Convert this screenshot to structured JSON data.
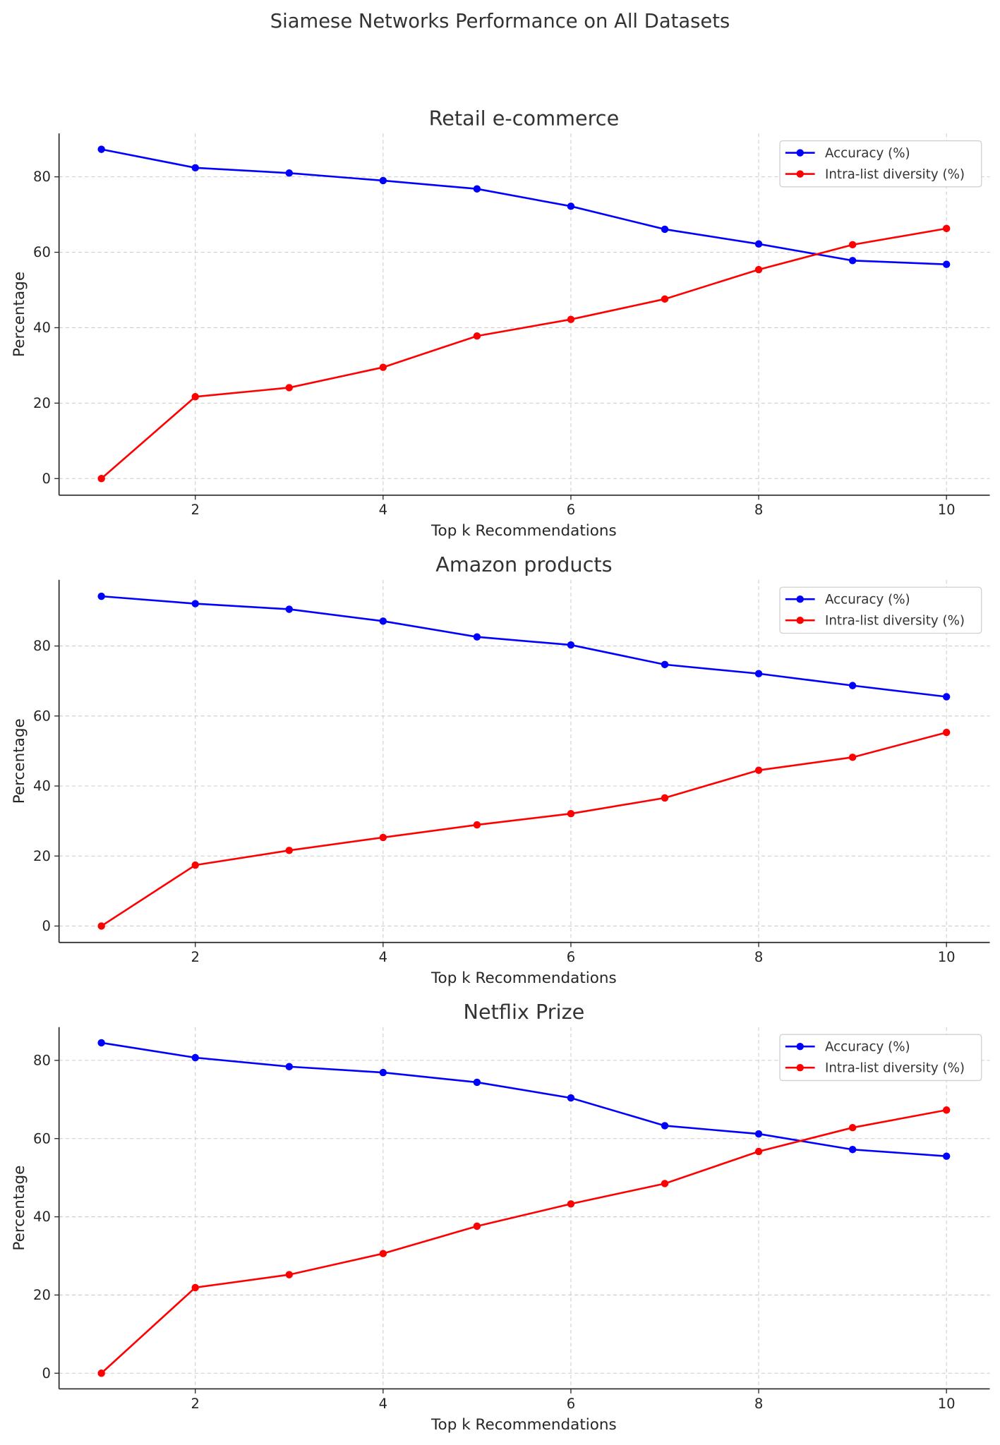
{
  "chart_data": {
    "title": "Siamese Networks Performance on All Datasets",
    "type": "line",
    "colors": {
      "accuracy": "#0000ff",
      "diversity": "#ff0000"
    },
    "grid": true,
    "legend_placement": "top-right",
    "subplots": [
      {
        "title": "Retail e-commerce",
        "xlabel": "Top k Recommendations",
        "ylabel": "Percentage",
        "x": [
          1,
          2,
          3,
          4,
          5,
          6,
          7,
          8,
          9,
          10
        ],
        "xticks": [
          2,
          4,
          6,
          8,
          10
        ],
        "yticks": [
          0,
          20,
          40,
          60,
          80
        ],
        "ylim": [
          -4.4,
          91.5
        ],
        "series": [
          {
            "name": "Accuracy (%)",
            "values": [
              87.3,
              82.4,
              81.0,
              79.0,
              76.8,
              72.2,
              66.1,
              62.2,
              57.8,
              56.8
            ]
          },
          {
            "name": "Intra-list diversity (%)",
            "values": [
              0,
              21.7,
              24.1,
              29.5,
              37.8,
              42.2,
              47.6,
              55.4,
              62.0,
              66.3
            ]
          }
        ]
      },
      {
        "title": "Amazon products",
        "xlabel": "Top k Recommendations",
        "ylabel": "Percentage",
        "x": [
          1,
          2,
          3,
          4,
          5,
          6,
          7,
          8,
          9,
          10
        ],
        "xticks": [
          2,
          4,
          6,
          8,
          10
        ],
        "yticks": [
          0,
          20,
          40,
          60,
          80
        ],
        "ylim": [
          -4.7,
          98.9
        ],
        "series": [
          {
            "name": "Accuracy (%)",
            "values": [
              94.2,
              92.1,
              90.5,
              87.1,
              82.6,
              80.3,
              74.7,
              72.1,
              68.7,
              65.5
            ]
          },
          {
            "name": "Intra-list diversity (%)",
            "values": [
              0,
              17.4,
              21.6,
              25.3,
              28.9,
              32.1,
              36.6,
              44.5,
              48.2,
              55.3
            ]
          }
        ]
      },
      {
        "title": "Netflix Prize",
        "xlabel": "Top k Recommendations",
        "ylabel": "Percentage",
        "x": [
          1,
          2,
          3,
          4,
          5,
          6,
          7,
          8,
          9,
          10
        ],
        "xticks": [
          2,
          4,
          6,
          8,
          10
        ],
        "yticks": [
          0,
          20,
          40,
          60,
          80
        ],
        "ylim": [
          -4.0,
          88.5
        ],
        "series": [
          {
            "name": "Accuracy (%)",
            "values": [
              84.5,
              80.7,
              78.4,
              76.9,
              74.4,
              70.4,
              63.3,
              61.2,
              57.2,
              55.5
            ]
          },
          {
            "name": "Intra-list diversity (%)",
            "values": [
              0,
              21.9,
              25.2,
              30.6,
              37.6,
              43.3,
              48.5,
              56.7,
              62.8,
              67.3
            ]
          }
        ]
      }
    ]
  }
}
